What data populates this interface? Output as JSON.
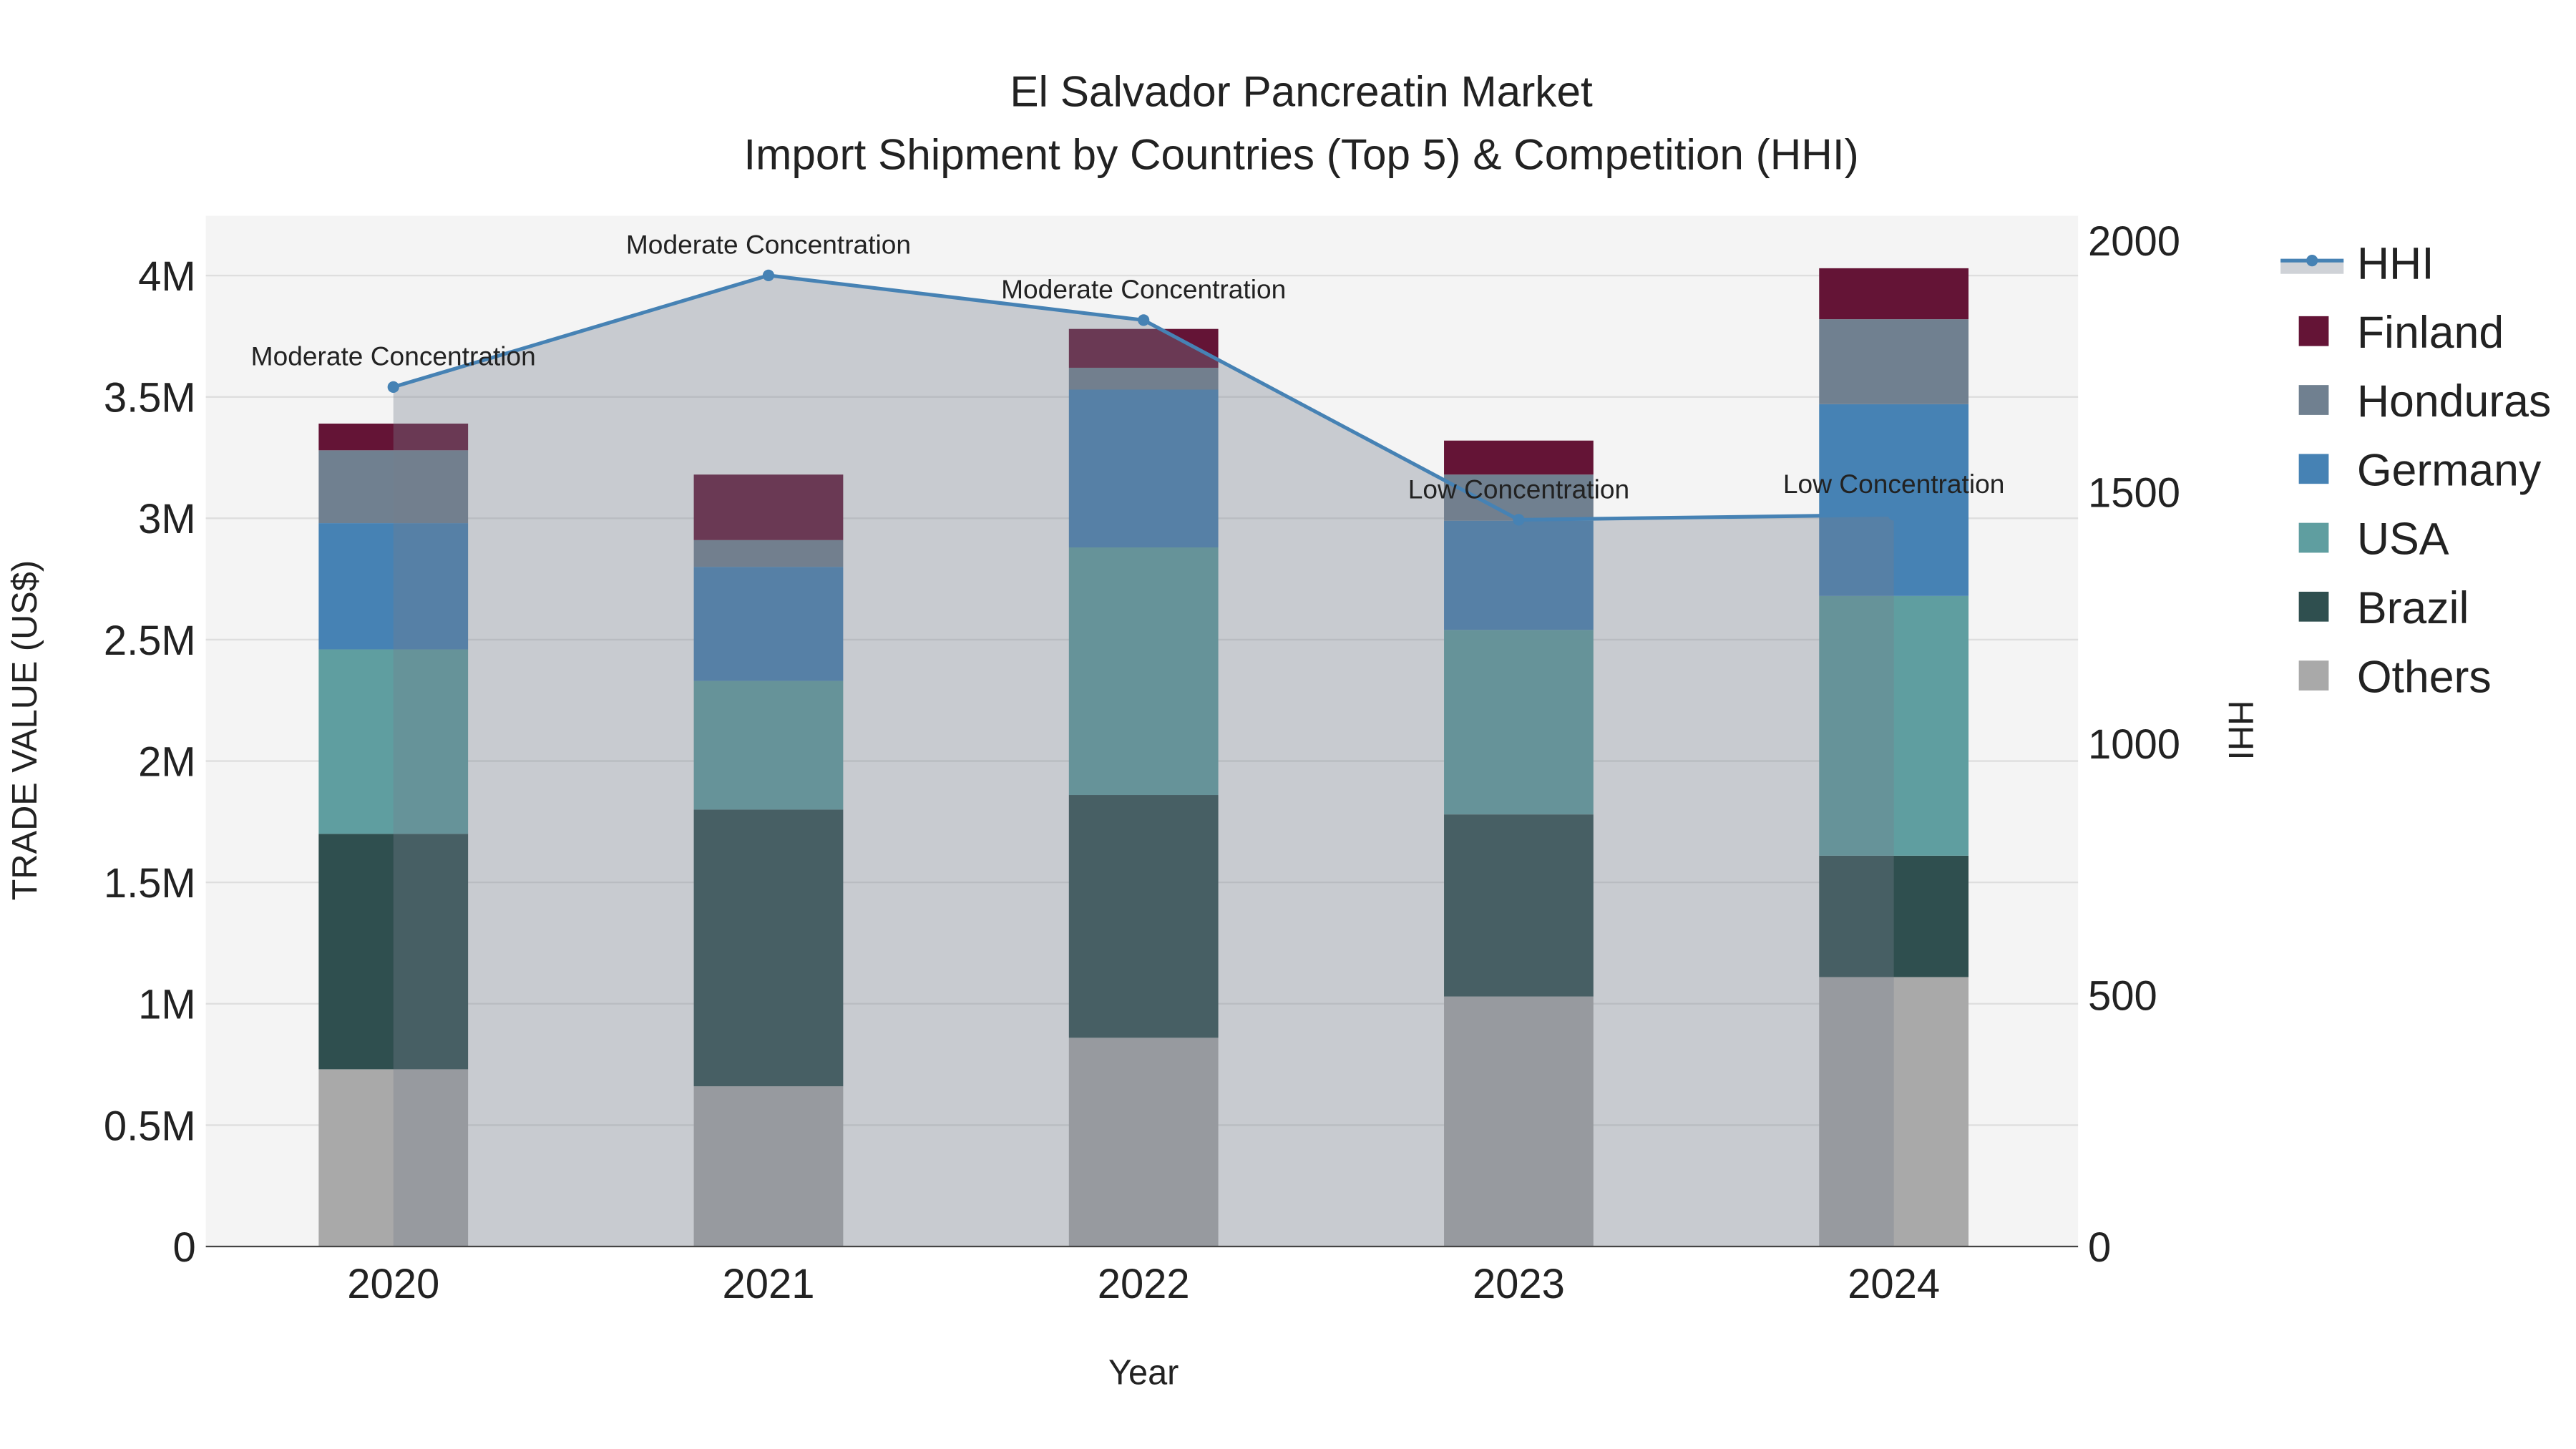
{
  "chart_data": {
    "type": "bar",
    "stacked": true,
    "title": "El Salvador Pancreatin Market",
    "subtitle": "Import Shipment by Countries (Top 5) & Competition (HHI)",
    "xlabel": "Year",
    "ylabel": "TRADE VALUE (US$)",
    "y2label": "HHI",
    "categories": [
      "2020",
      "2021",
      "2022",
      "2023",
      "2024"
    ],
    "ylim": [
      0,
      4250000
    ],
    "y2lim": [
      0,
      2100
    ],
    "yticks": [
      0,
      500000,
      1000000,
      1500000,
      2000000,
      2500000,
      3000000,
      3500000,
      4000000
    ],
    "ytick_labels": [
      "0",
      "0.5M",
      "1M",
      "1.5M",
      "2M",
      "2.5M",
      "3M",
      "3.5M",
      "4M"
    ],
    "y2ticks": [
      0,
      500,
      1000,
      1500,
      2000
    ],
    "y2tick_labels": [
      "0",
      "500",
      "1000",
      "1500",
      "2000"
    ],
    "grid": true,
    "legend_position": "right",
    "series": [
      {
        "name": "Others",
        "color": "#a9a9a9",
        "values": [
          730000,
          660000,
          860000,
          1030000,
          1110000
        ]
      },
      {
        "name": "Brazil",
        "color": "#2f4f4f",
        "values": [
          970000,
          1140000,
          1000000,
          750000,
          500000
        ]
      },
      {
        "name": "USA",
        "color": "#5f9ea0",
        "values": [
          760000,
          530000,
          1020000,
          760000,
          1070000
        ]
      },
      {
        "name": "Germany",
        "color": "#4682b4",
        "values": [
          520000,
          470000,
          650000,
          450000,
          790000
        ]
      },
      {
        "name": "Honduras",
        "color": "#708090",
        "values": [
          300000,
          110000,
          90000,
          190000,
          350000
        ]
      },
      {
        "name": "Finland",
        "color": "#641436",
        "values": [
          110000,
          270000,
          160000,
          140000,
          210000
        ]
      }
    ],
    "hhi": {
      "name": "HHI",
      "color": "#4682b4",
      "values": [
        1709,
        1931,
        1842,
        1445,
        1455
      ],
      "annotations": [
        "Moderate Concentration",
        "Moderate Concentration",
        "Moderate Concentration",
        "Low Concentration",
        "Low Concentration"
      ]
    },
    "legend": [
      "HHI",
      "Finland",
      "Honduras",
      "Germany",
      "USA",
      "Brazil",
      "Others"
    ]
  }
}
